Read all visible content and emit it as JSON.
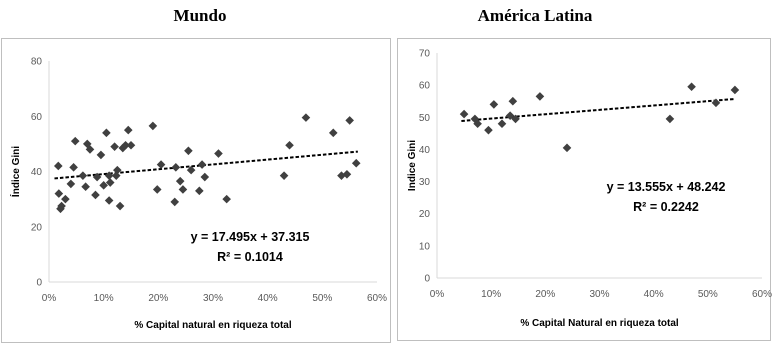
{
  "chart_data": [
    {
      "type": "scatter",
      "title": "Mundo",
      "xlabel": "% Capital natural en riqueza total",
      "ylabel": "Índice Gini",
      "xlim": [
        0,
        0.6
      ],
      "ylim": [
        0,
        80
      ],
      "xticks": [
        0,
        0.1,
        0.2,
        0.3,
        0.4,
        0.5,
        0.6
      ],
      "xtick_labels": [
        "0%",
        "10%",
        "20%",
        "30%",
        "40%",
        "50%",
        "60%"
      ],
      "yticks": [
        0,
        20,
        40,
        60,
        80
      ],
      "ytick_labels": [
        "0",
        "20",
        "40",
        "60",
        "80"
      ],
      "grid": false,
      "marker": "diamond",
      "marker_color": "#404040",
      "trendline": {
        "style": "dashed",
        "slope": 17.495,
        "intercept": 37.315,
        "x_range": [
          0.01,
          0.565
        ]
      },
      "equation": "y = 17.495x + 37.315",
      "r_squared": "R² = 0.1014",
      "points": [
        [
          0.017,
          42
        ],
        [
          0.018,
          32
        ],
        [
          0.021,
          26.5
        ],
        [
          0.023,
          27.5
        ],
        [
          0.03,
          30
        ],
        [
          0.04,
          35.5
        ],
        [
          0.045,
          41.5
        ],
        [
          0.048,
          51
        ],
        [
          0.062,
          38.5
        ],
        [
          0.067,
          34.5
        ],
        [
          0.07,
          50
        ],
        [
          0.075,
          48
        ],
        [
          0.085,
          31.5
        ],
        [
          0.088,
          38
        ],
        [
          0.095,
          46
        ],
        [
          0.1,
          35
        ],
        [
          0.105,
          54
        ],
        [
          0.11,
          38.5
        ],
        [
          0.11,
          29.5
        ],
        [
          0.112,
          36
        ],
        [
          0.12,
          49
        ],
        [
          0.123,
          38.5
        ],
        [
          0.125,
          40.5
        ],
        [
          0.13,
          27.5
        ],
        [
          0.135,
          48.5
        ],
        [
          0.14,
          49.5
        ],
        [
          0.145,
          55
        ],
        [
          0.15,
          49.5
        ],
        [
          0.19,
          56.5
        ],
        [
          0.198,
          33.5
        ],
        [
          0.205,
          42.5
        ],
        [
          0.23,
          29
        ],
        [
          0.232,
          41.5
        ],
        [
          0.24,
          36.5
        ],
        [
          0.245,
          33.5
        ],
        [
          0.255,
          47.5
        ],
        [
          0.26,
          40.5
        ],
        [
          0.275,
          33
        ],
        [
          0.28,
          42.5
        ],
        [
          0.285,
          38
        ],
        [
          0.31,
          46.5
        ],
        [
          0.325,
          30
        ],
        [
          0.43,
          38.5
        ],
        [
          0.44,
          49.5
        ],
        [
          0.47,
          59.5
        ],
        [
          0.52,
          54
        ],
        [
          0.535,
          38.5
        ],
        [
          0.545,
          39
        ],
        [
          0.55,
          58.5
        ],
        [
          0.562,
          43
        ]
      ]
    },
    {
      "type": "scatter",
      "title": "América Latina",
      "xlabel": "% Capital Natural en riqueza total",
      "ylabel": "Indice Gini",
      "xlim": [
        0,
        0.6
      ],
      "ylim": [
        0,
        70
      ],
      "xticks": [
        0,
        0.1,
        0.2,
        0.3,
        0.4,
        0.5,
        0.6
      ],
      "xtick_labels": [
        "0%",
        "10%",
        "20%",
        "30%",
        "40%",
        "50%",
        "60%"
      ],
      "yticks": [
        0,
        10,
        20,
        30,
        40,
        50,
        60,
        70
      ],
      "ytick_labels": [
        "0",
        "10",
        "20",
        "30",
        "40",
        "50",
        "60",
        "70"
      ],
      "grid": false,
      "marker": "diamond",
      "marker_color": "#404040",
      "trendline": {
        "style": "dashed",
        "slope": 13.555,
        "intercept": 48.242,
        "x_range": [
          0.045,
          0.55
        ]
      },
      "equation": "y = 13.555x + 48.242",
      "r_squared": "R² = 0.2242",
      "points": [
        [
          0.05,
          51
        ],
        [
          0.07,
          49.5
        ],
        [
          0.075,
          48
        ],
        [
          0.095,
          46
        ],
        [
          0.105,
          54
        ],
        [
          0.12,
          48
        ],
        [
          0.135,
          50.5
        ],
        [
          0.14,
          55
        ],
        [
          0.145,
          49.5
        ],
        [
          0.19,
          56.5
        ],
        [
          0.24,
          40.5
        ],
        [
          0.43,
          49.5
        ],
        [
          0.47,
          59.5
        ],
        [
          0.515,
          54.5
        ],
        [
          0.55,
          58.5
        ]
      ]
    }
  ]
}
